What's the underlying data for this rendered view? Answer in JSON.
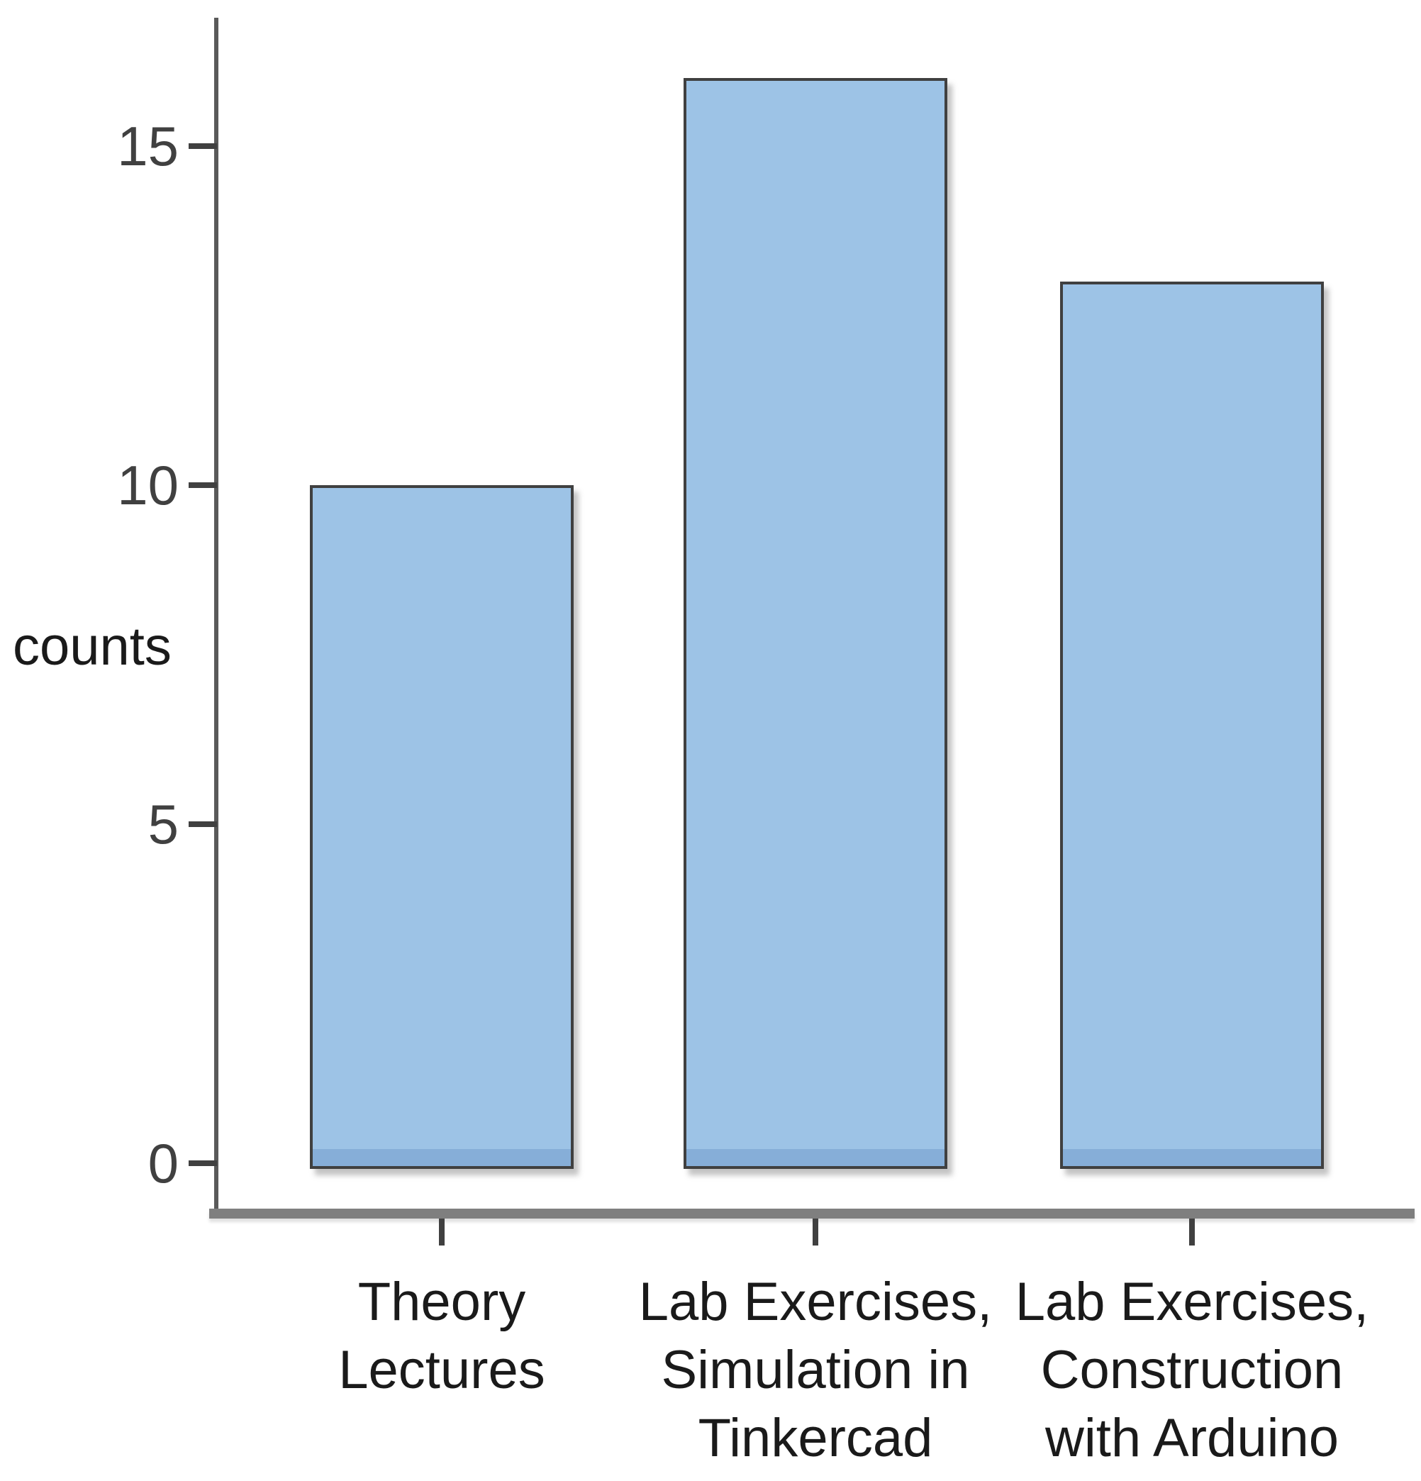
{
  "chart_data": {
    "type": "bar",
    "categories": [
      "Theory\nLectures",
      "Lab Exercises,\nSimulation in\nTinkercad",
      "Lab Exercises,\nConstruction\nwith Arduino"
    ],
    "values": [
      10,
      16,
      13
    ],
    "title": "",
    "xlabel": "",
    "ylabel": "counts",
    "yticks": [
      0,
      5,
      10,
      15
    ],
    "ylim": [
      0,
      16.9
    ],
    "grid": false,
    "legend": false,
    "bar_orientation": "vertical",
    "colors": {
      "bar_fill": "#9dc3e6",
      "bar_shade": "#86aed8",
      "bar_border": "#404040",
      "axis_line": "#7f7f7f",
      "y_axis_line": "#595959",
      "tick_mark": "#404040",
      "tick_label": "#404040",
      "category_label": "#1a1a1a"
    }
  }
}
